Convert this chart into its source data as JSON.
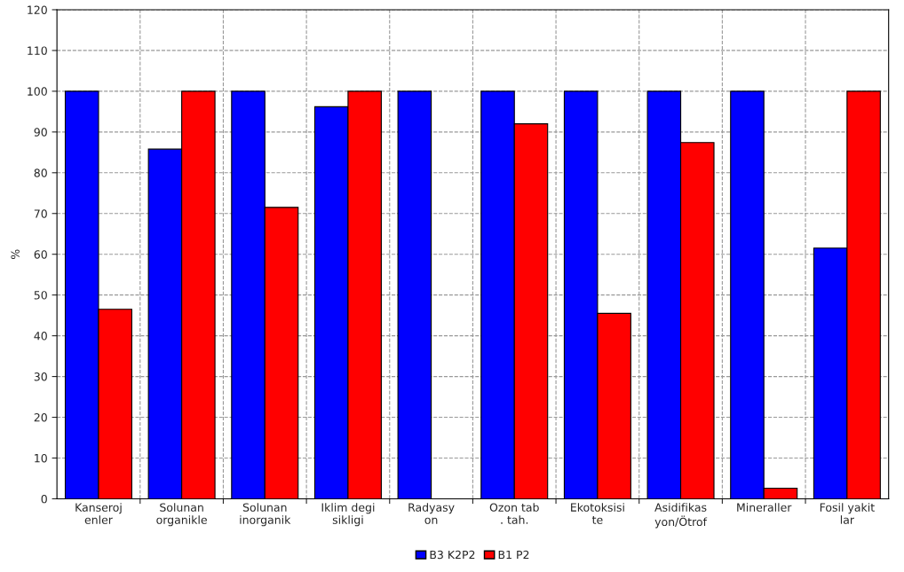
{
  "chart_data": {
    "type": "bar",
    "ylabel": "%",
    "categories": [
      "Kanseroj\nenler",
      "Solunan\norganikle",
      "Solunan\ninorganik",
      "Iklim degi\nsikligi",
      "Radyasy\non",
      "Ozon tab\n. tah.",
      "Ekotoksisi\nte",
      "Asidifikas\nyon/Ötrof",
      "Mineraller",
      "Fosil yakit\nlar"
    ],
    "series": [
      {
        "name": "B3 K2P2",
        "color": "#0000ff",
        "values": [
          100,
          85.8,
          100,
          96.2,
          100,
          100,
          100,
          100,
          100,
          61.5
        ]
      },
      {
        "name": "B1 P2",
        "color": "#ff0000",
        "values": [
          46.5,
          100,
          71.5,
          100,
          null,
          92,
          45.5,
          87.4,
          2.6,
          100
        ]
      }
    ],
    "ylim": [
      0,
      120
    ],
    "yticks": [
      0,
      10,
      20,
      30,
      40,
      50,
      60,
      70,
      80,
      90,
      100,
      110,
      120
    ],
    "grid": true,
    "legend": "bottom"
  }
}
